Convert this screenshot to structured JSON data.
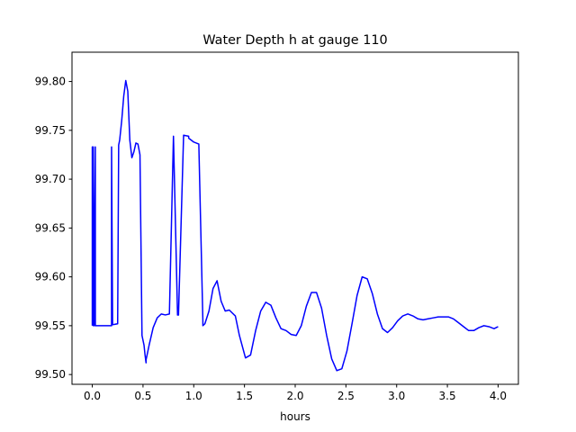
{
  "chart_data": {
    "type": "line",
    "title": "Water Depth h at gauge 110",
    "xlabel": "hours",
    "ylabel": "",
    "xlim": [
      -0.2,
      4.2
    ],
    "ylim": [
      99.49,
      99.83
    ],
    "xticks": [
      0.0,
      0.5,
      1.0,
      1.5,
      2.0,
      2.5,
      3.0,
      3.5,
      4.0
    ],
    "xtick_labels": [
      "0.0",
      "0.5",
      "1.0",
      "1.5",
      "2.0",
      "2.5",
      "3.0",
      "3.5",
      "4.0"
    ],
    "yticks": [
      99.5,
      99.55,
      99.6,
      99.65,
      99.7,
      99.75,
      99.8
    ],
    "ytick_labels": [
      "99.50",
      "99.55",
      "99.60",
      "99.65",
      "99.70",
      "99.75",
      "99.80"
    ],
    "grid": false,
    "series": [
      {
        "color": "#0000ff",
        "x": [
          0.0,
          0.0,
          0.01,
          0.01,
          0.02,
          0.02,
          0.03,
          0.03,
          0.04,
          0.04,
          0.05,
          0.19,
          0.19,
          0.2,
          0.2,
          0.25,
          0.26,
          0.27,
          0.29,
          0.31,
          0.33,
          0.35,
          0.37,
          0.39,
          0.41,
          0.43,
          0.45,
          0.47,
          0.49,
          0.51,
          0.52,
          0.53,
          0.53,
          0.56,
          0.6,
          0.64,
          0.68,
          0.72,
          0.76,
          0.8,
          0.84,
          0.84,
          0.85,
          0.85,
          0.9,
          0.95,
          0.95,
          1.0,
          1.05,
          1.09,
          1.09,
          1.11,
          1.15,
          1.19,
          1.23,
          1.27,
          1.31,
          1.35,
          1.41,
          1.45,
          1.51,
          1.56,
          1.61,
          1.66,
          1.71,
          1.76,
          1.81,
          1.86,
          1.91,
          1.96,
          2.01,
          2.06,
          2.11,
          2.16,
          2.21,
          2.26,
          2.31,
          2.36,
          2.41,
          2.46,
          2.51,
          2.56,
          2.61,
          2.66,
          2.71,
          2.76,
          2.81,
          2.86,
          2.91,
          2.96,
          3.01,
          3.06,
          3.11,
          3.16,
          3.21,
          3.26,
          3.31,
          3.36,
          3.41,
          3.46,
          3.51,
          3.56,
          3.61,
          3.66,
          3.71,
          3.76,
          3.81,
          3.86,
          3.91,
          3.96,
          4.0
        ],
        "y": [
          99.55,
          99.733,
          99.55,
          99.733,
          99.55,
          99.55,
          99.733,
          99.55,
          99.55,
          99.55,
          99.55,
          99.55,
          99.733,
          99.552,
          99.551,
          99.552,
          99.735,
          99.74,
          99.76,
          99.785,
          99.801,
          99.79,
          99.74,
          99.722,
          99.728,
          99.737,
          99.736,
          99.725,
          99.54,
          99.53,
          99.52,
          99.512,
          99.515,
          99.53,
          99.548,
          99.558,
          99.562,
          99.561,
          99.562,
          99.744,
          99.562,
          99.561,
          99.561,
          99.562,
          99.745,
          99.744,
          99.742,
          99.738,
          99.736,
          99.555,
          99.55,
          99.552,
          99.565,
          99.588,
          99.596,
          99.575,
          99.565,
          99.566,
          99.56,
          99.54,
          99.517,
          99.52,
          99.545,
          99.565,
          99.574,
          99.571,
          99.558,
          99.547,
          99.545,
          99.541,
          99.54,
          99.55,
          99.57,
          99.584,
          99.584,
          99.568,
          99.54,
          99.516,
          99.504,
          99.506,
          99.524,
          99.552,
          99.581,
          99.6,
          99.598,
          99.583,
          99.562,
          99.547,
          99.543,
          99.548,
          99.555,
          99.56,
          99.562,
          99.56,
          99.557,
          99.556,
          99.557,
          99.558,
          99.559,
          99.559,
          99.559,
          99.557,
          99.553,
          99.549,
          99.545,
          99.545,
          99.548,
          99.55,
          99.549,
          99.547,
          99.549
        ]
      }
    ]
  }
}
